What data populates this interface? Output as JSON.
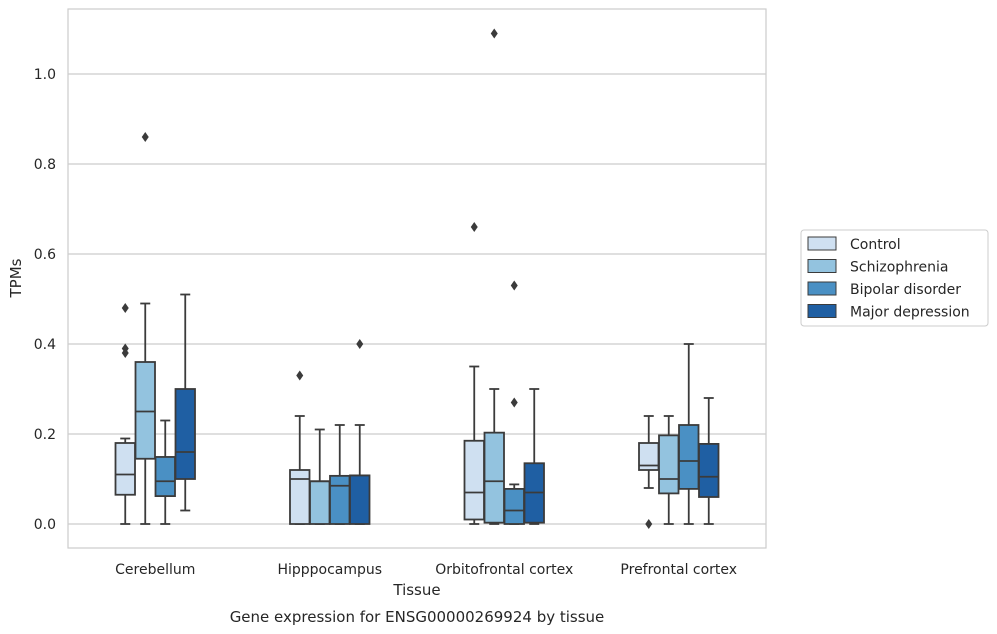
{
  "chart_data": {
    "type": "box",
    "caption": "Gene expression for ENSG00000269924 by tissue",
    "xlabel": "Tissue",
    "ylabel": "TPMs",
    "ylim": [
      -0.05,
      1.15
    ],
    "yticks": [
      "0.0",
      "0.2",
      "0.4",
      "0.6",
      "0.8",
      "1.0"
    ],
    "categories": [
      "Cerebellum",
      "Hipppocampus",
      "Orbitofrontal cortex",
      "Prefrontal cortex"
    ],
    "grid": "horizontal",
    "legend_position": "right",
    "series": [
      {
        "name": "Control",
        "color": "#cfe0f1",
        "boxes": [
          {
            "whisker_low": 0.0,
            "q1": 0.065,
            "median": 0.11,
            "q3": 0.18,
            "whisker_high": 0.19,
            "outliers": [
              0.38,
              0.39,
              0.48
            ]
          },
          {
            "whisker_low": 0.0,
            "q1": 0.0,
            "median": 0.1,
            "q3": 0.12,
            "whisker_high": 0.24,
            "outliers": [
              0.33
            ]
          },
          {
            "whisker_low": 0.0,
            "q1": 0.01,
            "median": 0.07,
            "q3": 0.185,
            "whisker_high": 0.35,
            "outliers": [
              0.66
            ]
          },
          {
            "whisker_low": 0.08,
            "q1": 0.12,
            "median": 0.13,
            "q3": 0.18,
            "whisker_high": 0.24,
            "outliers": [
              0.0
            ]
          }
        ]
      },
      {
        "name": "Schizophrenia",
        "color": "#93c3df",
        "boxes": [
          {
            "whisker_low": 0.0,
            "q1": 0.145,
            "median": 0.25,
            "q3": 0.36,
            "whisker_high": 0.49,
            "outliers": [
              0.86
            ]
          },
          {
            "whisker_low": 0.0,
            "q1": 0.0,
            "median": 0.095,
            "q3": 0.095,
            "whisker_high": 0.21,
            "outliers": []
          },
          {
            "whisker_low": 0.0,
            "q1": 0.003,
            "median": 0.095,
            "q3": 0.203,
            "whisker_high": 0.3,
            "outliers": [
              1.09
            ]
          },
          {
            "whisker_low": 0.0,
            "q1": 0.068,
            "median": 0.1,
            "q3": 0.197,
            "whisker_high": 0.24,
            "outliers": []
          }
        ]
      },
      {
        "name": "Bipolar disorder",
        "color": "#4a90c4",
        "boxes": [
          {
            "whisker_low": 0.0,
            "q1": 0.062,
            "median": 0.095,
            "q3": 0.149,
            "whisker_high": 0.23,
            "outliers": []
          },
          {
            "whisker_low": 0.0,
            "q1": 0.0,
            "median": 0.085,
            "q3": 0.107,
            "whisker_high": 0.22,
            "outliers": []
          },
          {
            "whisker_low": 0.0,
            "q1": 0.0,
            "median": 0.03,
            "q3": 0.078,
            "whisker_high": 0.088,
            "outliers": [
              0.27,
              0.53
            ]
          },
          {
            "whisker_low": 0.0,
            "q1": 0.078,
            "median": 0.14,
            "q3": 0.22,
            "whisker_high": 0.4,
            "outliers": []
          }
        ]
      },
      {
        "name": "Major depression",
        "color": "#1f5fa3",
        "boxes": [
          {
            "whisker_low": 0.03,
            "q1": 0.1,
            "median": 0.16,
            "q3": 0.3,
            "whisker_high": 0.51,
            "outliers": []
          },
          {
            "whisker_low": 0.0,
            "q1": 0.0,
            "median": 0.108,
            "q3": 0.108,
            "whisker_high": 0.22,
            "outliers": [
              0.4
            ]
          },
          {
            "whisker_low": 0.0,
            "q1": 0.003,
            "median": 0.07,
            "q3": 0.135,
            "whisker_high": 0.3,
            "outliers": []
          },
          {
            "whisker_low": 0.0,
            "q1": 0.06,
            "median": 0.105,
            "q3": 0.178,
            "whisker_high": 0.28,
            "outliers": []
          }
        ]
      }
    ]
  }
}
